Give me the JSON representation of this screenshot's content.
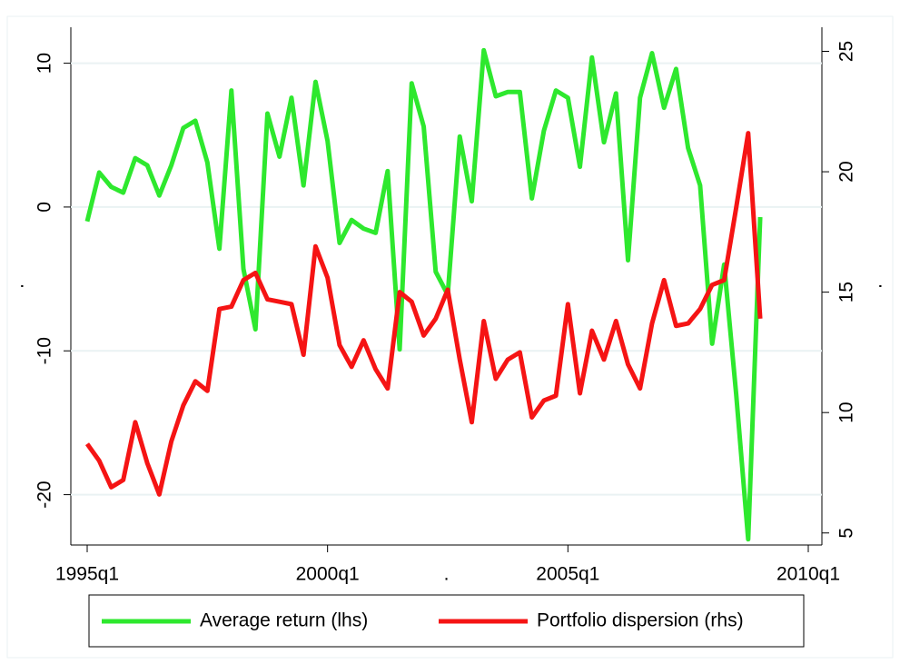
{
  "chart_data": {
    "type": "line",
    "xlabel": ".",
    "ylabel": ".",
    "y2label": ".",
    "x": [
      "1995q1",
      "1995q2",
      "1995q3",
      "1995q4",
      "1996q1",
      "1996q2",
      "1996q3",
      "1996q4",
      "1997q1",
      "1997q2",
      "1997q3",
      "1997q4",
      "1998q1",
      "1998q2",
      "1998q3",
      "1998q4",
      "1999q1",
      "1999q2",
      "1999q3",
      "1999q4",
      "2000q1",
      "2000q2",
      "2000q3",
      "2000q4",
      "2001q1",
      "2001q2",
      "2001q3",
      "2001q4",
      "2002q1",
      "2002q2",
      "2002q3",
      "2002q4",
      "2003q1",
      "2003q2",
      "2003q3",
      "2003q4",
      "2004q1",
      "2004q2",
      "2004q3",
      "2004q4",
      "2005q1",
      "2005q2",
      "2005q3",
      "2005q4",
      "2006q1",
      "2006q2",
      "2006q3",
      "2006q4",
      "2007q1",
      "2007q2",
      "2007q3",
      "2007q4",
      "2008q1",
      "2008q2",
      "2008q3",
      "2008q4",
      "2009q1"
    ],
    "xticks": [
      "1995q1",
      "2000q1",
      "2005q1",
      "2010q1"
    ],
    "ylim": [
      -23.5,
      12.5
    ],
    "yticks": [
      -20,
      -10,
      0,
      10
    ],
    "y2lim": [
      4.5,
      26
    ],
    "y2ticks": [
      5,
      10,
      15,
      20,
      25
    ],
    "grid": true,
    "legend": "bottom",
    "series": [
      {
        "name": "Average return (lhs)",
        "color": "#2ee82e",
        "values": [
          -1.0,
          2.4,
          1.4,
          1.0,
          3.4,
          2.9,
          0.8,
          2.9,
          5.5,
          6.0,
          3.1,
          -2.9,
          8.1,
          -4.3,
          -8.5,
          6.5,
          3.5,
          7.6,
          1.5,
          8.7,
          4.6,
          -2.5,
          -0.9,
          -1.5,
          -1.8,
          2.5,
          -9.9,
          8.6,
          5.6,
          -4.5,
          -6.1,
          4.9,
          0.4,
          10.9,
          7.7,
          8.0,
          8.0,
          0.6,
          5.3,
          8.1,
          7.6,
          2.8,
          10.4,
          4.5,
          7.9,
          -3.7,
          7.6,
          10.7,
          6.9,
          9.6,
          4.1,
          1.5,
          -9.5,
          -4.0,
          -13.0,
          -23.1,
          -0.7
        ]
      },
      {
        "name": "Portfolio dispersion (rhs)",
        "color": "#f51414",
        "axis": "y2",
        "values": [
          8.7,
          8.0,
          6.9,
          7.2,
          9.6,
          7.9,
          6.6,
          8.8,
          10.3,
          11.3,
          10.9,
          14.3,
          14.4,
          15.5,
          15.8,
          14.7,
          14.6,
          14.5,
          12.4,
          16.9,
          15.6,
          12.8,
          11.9,
          13.0,
          11.8,
          11.0,
          15.0,
          14.6,
          13.2,
          13.9,
          15.1,
          12.2,
          9.6,
          13.8,
          11.4,
          12.2,
          12.5,
          9.8,
          10.5,
          10.7,
          14.5,
          10.8,
          13.4,
          12.2,
          13.8,
          12.0,
          11.0,
          13.7,
          15.5,
          13.6,
          13.7,
          14.3,
          15.3,
          15.5,
          18.5,
          21.6,
          13.9
        ]
      }
    ]
  }
}
